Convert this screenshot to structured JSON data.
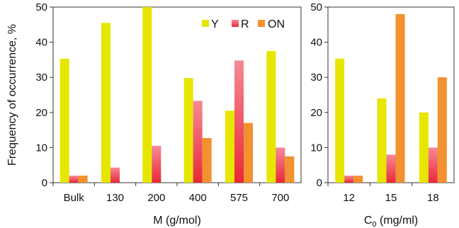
{
  "chart_data": [
    {
      "type": "bar",
      "categories": [
        "Bulk",
        "130",
        "200",
        "400",
        "575",
        "700"
      ],
      "series": [
        {
          "name": "Y",
          "values": [
            35.3,
            45.5,
            50,
            29.8,
            20.5,
            37.5
          ]
        },
        {
          "name": "R",
          "values": [
            2,
            4.3,
            10.5,
            23.3,
            34.8,
            10
          ]
        },
        {
          "name": "ON",
          "values": [
            2,
            0,
            0,
            12.7,
            17,
            7.5
          ]
        }
      ],
      "xlabel": "M (g/mol)",
      "ylabel": "Frequency of occurrence, %",
      "ylim": [
        0,
        50
      ],
      "yticks": [
        "0",
        "10",
        "20",
        "30",
        "40",
        "50"
      ],
      "legend_position": "top-right"
    },
    {
      "type": "bar",
      "categories": [
        "12",
        "15",
        "18"
      ],
      "series": [
        {
          "name": "Y",
          "values": [
            35.3,
            24,
            20
          ]
        },
        {
          "name": "R",
          "values": [
            2,
            8,
            10
          ]
        },
        {
          "name": "ON",
          "values": [
            2,
            48,
            30
          ]
        }
      ],
      "xlabel_main": "C",
      "xlabel_sub": "0",
      "xlabel_rest": " (mg/ml)",
      "ylim": [
        0,
        50
      ],
      "yticks": [
        "0",
        "10",
        "20",
        "30",
        "40",
        "50"
      ]
    }
  ],
  "colors": {
    "Y": "#e6e600",
    "R_top": "#f58a95",
    "R_bottom": "#ea2838",
    "ON": "#f2912e",
    "axis": "#333333"
  }
}
